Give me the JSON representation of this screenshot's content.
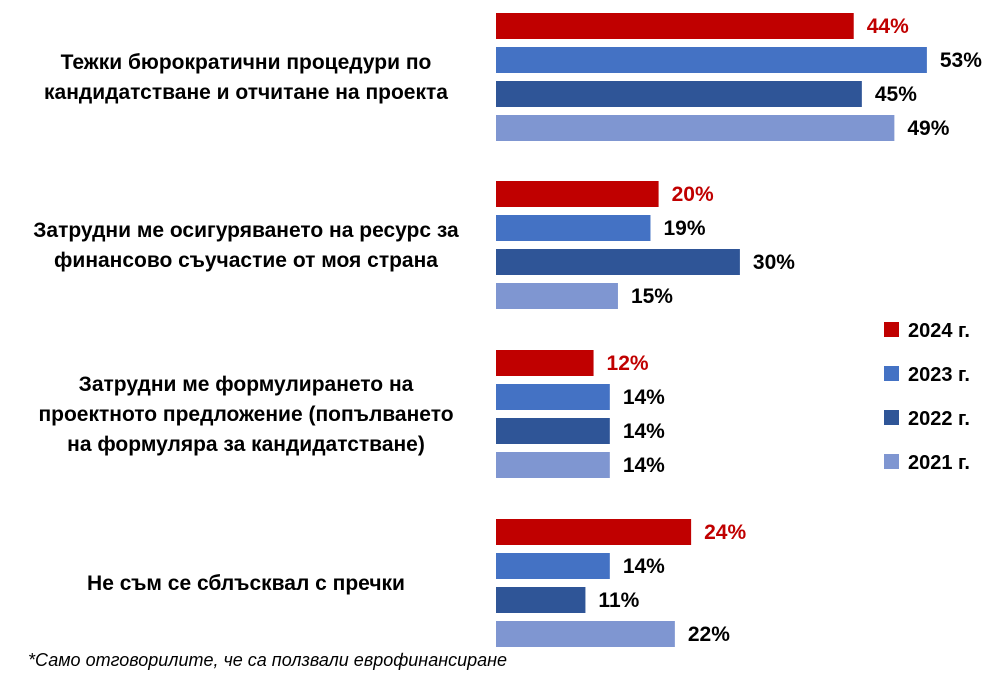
{
  "chart_data": {
    "type": "bar",
    "orientation": "horizontal",
    "categories": [
      [
        "Тежки бюрократични процедури по",
        "кандидатстване и отчитане на проекта"
      ],
      [
        "Затрудни ме осигуряването на ресурс за",
        "финансово съучастие от моя страна"
      ],
      [
        "Затрудни ме формулирането на",
        "проектното предложение (попълването",
        "на формуляра за кандидатстване)"
      ],
      [
        "Не съм се сблъсквал с пречки"
      ]
    ],
    "series": [
      {
        "name": "2024 г.",
        "color": "#c00000",
        "label_color": "#c00000",
        "values": [
          44,
          20,
          12,
          24
        ]
      },
      {
        "name": "2023 г.",
        "color": "#4472c4",
        "label_color": "#000000",
        "values": [
          53,
          19,
          14,
          14
        ]
      },
      {
        "name": "2022 г.",
        "color": "#2f5597",
        "label_color": "#000000",
        "values": [
          45,
          30,
          14,
          11
        ]
      },
      {
        "name": "2021 г.",
        "color": "#7f96d1",
        "label_color": "#000000",
        "values": [
          49,
          15,
          14,
          22
        ]
      }
    ],
    "value_suffix": "%",
    "legend_position": "right",
    "grid": false
  },
  "footnote": "*Само отговорилите, че са  ползвали еврофинансиране"
}
